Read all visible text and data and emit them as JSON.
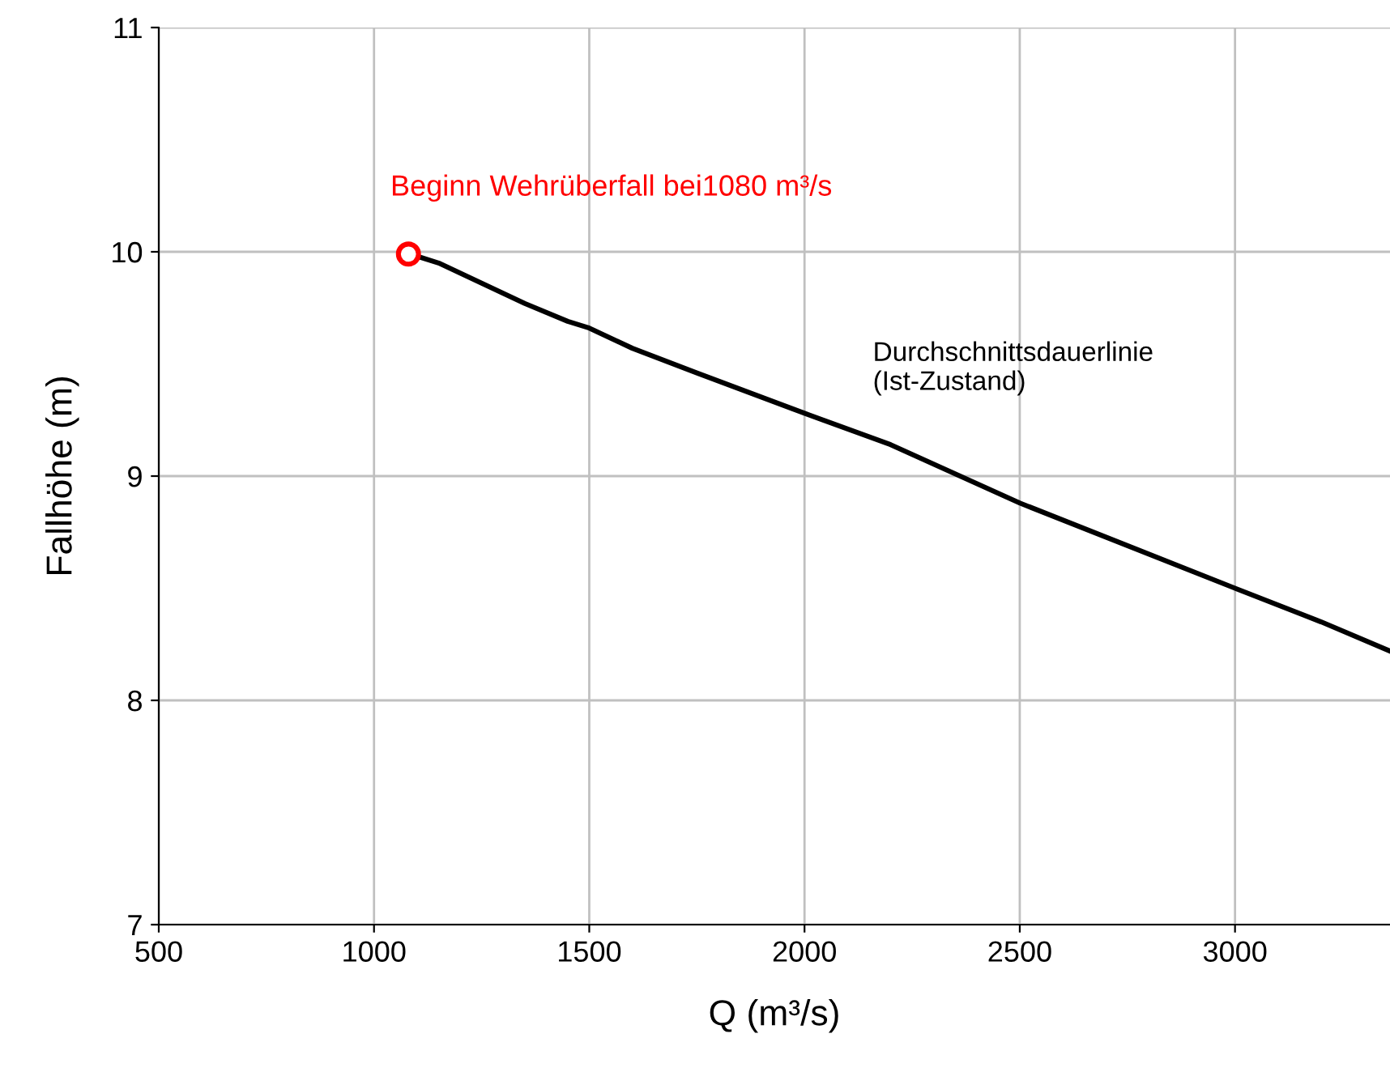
{
  "chart_data": {
    "type": "line",
    "xlabel": "Q (m³/s)",
    "ylabel": "Fallhöhe (m)",
    "xlim": [
      500,
      3360
    ],
    "xticks": [
      500,
      1000,
      1500,
      2000,
      2500,
      3000
    ],
    "ylim": [
      7,
      11
    ],
    "yticks": [
      7,
      8,
      9,
      10,
      11
    ],
    "grid": true,
    "legend": false,
    "series": [
      {
        "name": "Durchschnittsdauerlinie\n(Ist-Zustand)",
        "color": "#000000",
        "x": [
          1100,
          1150,
          1250,
          1350,
          1450,
          1500,
          1600,
          1750,
          2000,
          2200,
          2500,
          2750,
          3000,
          3200,
          3360
        ],
        "values": [
          9.98,
          9.95,
          9.86,
          9.77,
          9.69,
          9.66,
          9.57,
          9.46,
          9.28,
          9.14,
          8.88,
          8.69,
          8.5,
          8.35,
          8.22
        ]
      },
      {
        "type": "scatter",
        "marker": "circle",
        "color": "#ff0000",
        "x": [
          1080
        ],
        "values": [
          9.99
        ]
      }
    ],
    "annotations": [
      {
        "text": "Beginn Wehrüberfall bei1080 m³/s",
        "x": 1080,
        "y": 9.99
      }
    ]
  }
}
